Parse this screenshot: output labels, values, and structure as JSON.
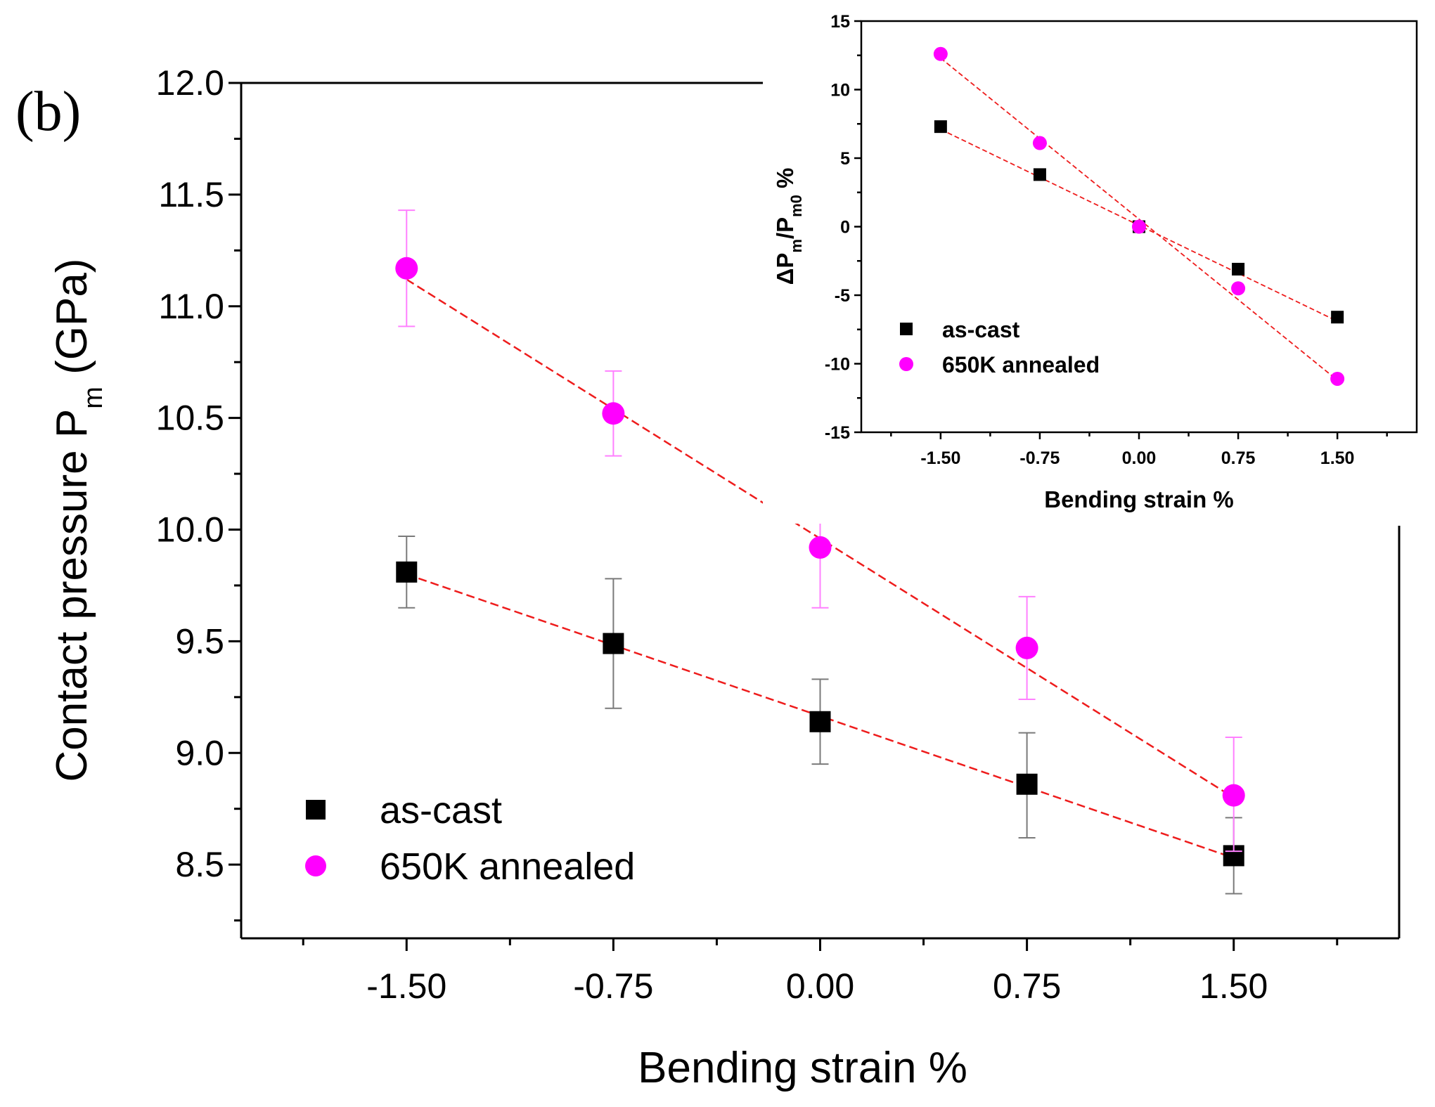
{
  "panel_label": "(b)",
  "chart_data": [
    {
      "id": "main",
      "type": "scatter",
      "xlabel": "Bending strain %",
      "ylabel": {
        "main": "Contact pressure P",
        "sub": "m",
        "unit": " (GPa)"
      },
      "xlim": [
        -2.1,
        2.1
      ],
      "ylim": [
        8.17,
        12.0
      ],
      "xticks": [
        -1.5,
        -0.75,
        0.0,
        0.75,
        1.5
      ],
      "xtick_labels": [
        "-1.50",
        "-0.75",
        "0.00",
        "0.75",
        "1.50"
      ],
      "yticks": [
        8.5,
        9.0,
        9.5,
        10.0,
        10.5,
        11.0,
        11.5,
        12.0
      ],
      "ytick_labels": [
        "8.5",
        "9.0",
        "9.5",
        "10.0",
        "10.5",
        "11.0",
        "11.5",
        "12.0"
      ],
      "legend_position": "bottom-left",
      "series": [
        {
          "name": "as-cast",
          "marker": "square",
          "color": "#000000",
          "errorbar_color": "#7a7a7a",
          "x": [
            -1.5,
            -0.75,
            0.0,
            0.75,
            1.5
          ],
          "y": [
            9.81,
            9.49,
            9.14,
            8.86,
            8.54
          ],
          "err_low": [
            0.16,
            0.29,
            0.19,
            0.24,
            0.17
          ],
          "err_high": [
            0.16,
            0.29,
            0.19,
            0.23,
            0.17
          ],
          "fit": {
            "x": [
              -1.5,
              1.5
            ],
            "y": [
              9.8,
              8.53
            ],
            "color": "#ee1c1c",
            "style": "dashed"
          }
        },
        {
          "name": "650K annealed",
          "marker": "circle",
          "color": "#ff00ff",
          "errorbar_color": "#ff80ff",
          "x": [
            -1.5,
            -0.75,
            0.0,
            0.75,
            1.5
          ],
          "y": [
            11.17,
            10.52,
            9.92,
            9.47,
            8.81
          ],
          "err_low": [
            0.26,
            0.19,
            0.27,
            0.23,
            0.25
          ],
          "err_high": [
            0.26,
            0.19,
            0.27,
            0.23,
            0.26
          ],
          "fit": {
            "x": [
              -1.5,
              1.5
            ],
            "y": [
              11.12,
              8.8
            ],
            "color": "#ee1c1c",
            "style": "dashed"
          }
        }
      ]
    },
    {
      "id": "inset",
      "type": "scatter",
      "xlabel": "Bending strain %",
      "ylabel": {
        "prefix": "ΔP",
        "sub1": "m",
        "mid": "/P",
        "sub2": "m0",
        "suffix": " %"
      },
      "xlim": [
        -2.1,
        2.1
      ],
      "ylim": [
        -15,
        15
      ],
      "xticks": [
        -1.5,
        -0.75,
        0.0,
        0.75,
        1.5
      ],
      "xtick_labels": [
        "-1.50",
        "-0.75",
        "0.00",
        "0.75",
        "1.50"
      ],
      "yticks": [
        -15,
        -10,
        -5,
        0,
        5,
        10,
        15
      ],
      "ytick_labels": [
        "-15",
        "-10",
        "-5",
        "0",
        "5",
        "10",
        "15"
      ],
      "legend_position": "bottom-left",
      "series": [
        {
          "name": "as-cast",
          "marker": "square",
          "color": "#000000",
          "x": [
            -1.5,
            -0.75,
            0.0,
            0.75,
            1.5
          ],
          "y": [
            7.3,
            3.8,
            0.0,
            -3.1,
            -6.6
          ],
          "fit": {
            "x": [
              -1.5,
              1.5
            ],
            "y": [
              7.1,
              -6.9
            ],
            "color": "#ee1c1c",
            "style": "dashed"
          }
        },
        {
          "name": "650K annealed",
          "marker": "circle",
          "color": "#ff00ff",
          "x": [
            -1.5,
            -0.75,
            0.0,
            0.75,
            1.5
          ],
          "y": [
            12.6,
            6.1,
            0.0,
            -4.5,
            -11.1
          ],
          "fit": {
            "x": [
              -1.5,
              1.5
            ],
            "y": [
              12.3,
              -11.2
            ],
            "color": "#ee1c1c",
            "style": "dashed"
          }
        }
      ]
    }
  ]
}
